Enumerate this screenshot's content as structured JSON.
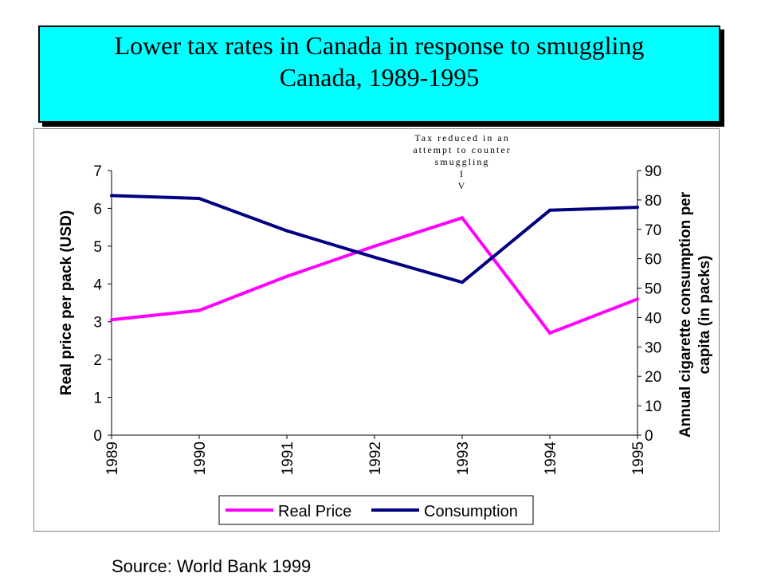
{
  "title": {
    "line1": "Lower tax rates in Canada in response to smuggling",
    "line2": "Canada, 1989-1995"
  },
  "source": "Source: World Bank 1999",
  "colors": {
    "title_bg": "#00ffff",
    "real_price": "#ff00ff",
    "consumption": "#000080"
  },
  "chart_data": {
    "type": "line",
    "categories": [
      "1989",
      "1990",
      "1991",
      "1992",
      "1993",
      "1994",
      "1995"
    ],
    "ylabel": "Real price per pack (USD)",
    "ylim": [
      0,
      7
    ],
    "yticks": [
      "0",
      "1",
      "2",
      "3",
      "4",
      "5",
      "6",
      "7"
    ],
    "y2label_line1": "Annual cigarette consumption per",
    "y2label_line2": "capita (in packs)",
    "y2lim": [
      0,
      90
    ],
    "y2ticks": [
      "0",
      "10",
      "20",
      "30",
      "40",
      "50",
      "60",
      "70",
      "80",
      "90"
    ],
    "series": [
      {
        "name": "Real Price",
        "axis": "left",
        "values": [
          3.05,
          3.3,
          4.2,
          5.0,
          5.75,
          2.7,
          3.6
        ]
      },
      {
        "name": "Consumption",
        "axis": "right",
        "values": [
          81.5,
          80.5,
          69.5,
          60.5,
          52,
          76.5,
          77.5
        ]
      }
    ],
    "annotation": {
      "lines": [
        "Tax reduced in an",
        "attempt to counter",
        "smuggling",
        "I",
        "V"
      ],
      "category": "1993"
    },
    "grid": false,
    "legend": "bottom"
  }
}
